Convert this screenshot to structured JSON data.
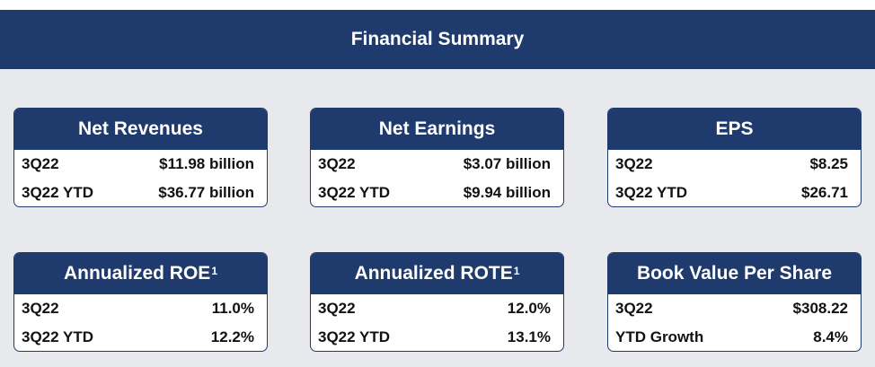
{
  "banner": {
    "title": "Financial Summary"
  },
  "cards": [
    {
      "title": "Net Revenues",
      "superscript": "",
      "rows": [
        {
          "label": "3Q22",
          "value": "$11.98 billion"
        },
        {
          "label": "3Q22 YTD",
          "value": "$36.77 billion"
        }
      ]
    },
    {
      "title": "Net Earnings",
      "superscript": "",
      "rows": [
        {
          "label": "3Q22",
          "value": "$3.07 billion"
        },
        {
          "label": "3Q22 YTD",
          "value": "$9.94 billion"
        }
      ]
    },
    {
      "title": "EPS",
      "superscript": "",
      "rows": [
        {
          "label": "3Q22",
          "value": "$8.25"
        },
        {
          "label": "3Q22 YTD",
          "value": "$26.71"
        }
      ]
    },
    {
      "title": "Annualized ROE",
      "superscript": "1",
      "rows": [
        {
          "label": "3Q22",
          "value": "11.0%"
        },
        {
          "label": "3Q22 YTD",
          "value": "12.2%"
        }
      ]
    },
    {
      "title": "Annualized ROTE",
      "superscript": "1",
      "rows": [
        {
          "label": "3Q22",
          "value": "12.0%"
        },
        {
          "label": "3Q22 YTD",
          "value": "13.1%"
        }
      ]
    },
    {
      "title": "Book Value Per Share",
      "superscript": "",
      "rows": [
        {
          "label": "3Q22",
          "value": "$308.22"
        },
        {
          "label": "YTD Growth",
          "value": "8.4%"
        }
      ]
    }
  ],
  "colors": {
    "navy": "#1f3a6c",
    "background": "#e7e9ec",
    "card": "#ffffff"
  }
}
